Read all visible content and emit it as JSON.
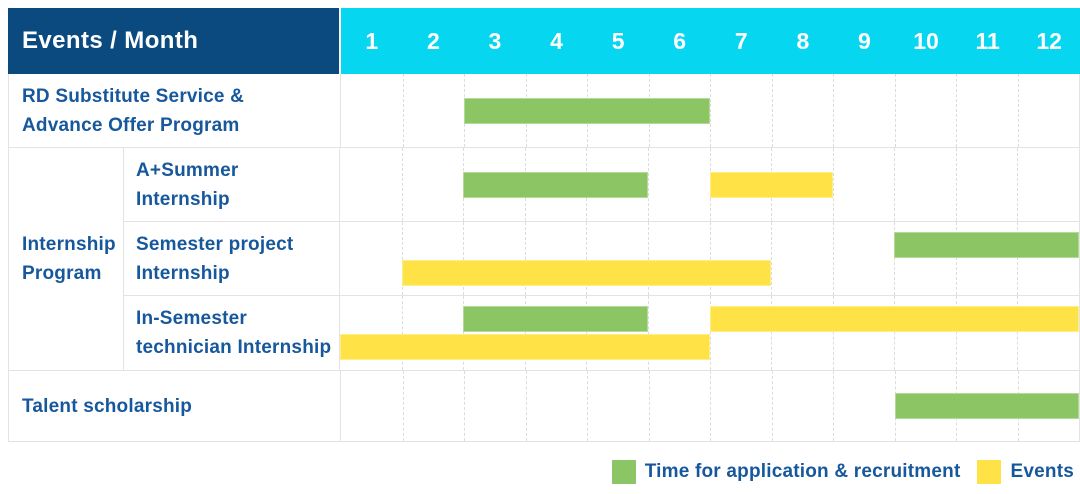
{
  "header": {
    "title": "Events / Month"
  },
  "colors": {
    "navy": "#0B4A7E",
    "cyan": "#06D6EF",
    "green": "#8CC664",
    "yellow": "#FFE346",
    "label_blue": "#17589C",
    "grid_line": "#E3E3E3"
  },
  "chart_data": {
    "type": "gantt",
    "corner_title": "Events / Month",
    "months": [
      "1",
      "2",
      "3",
      "4",
      "5",
      "6",
      "7",
      "8",
      "9",
      "10",
      "11",
      "12"
    ],
    "x_range": [
      1,
      12
    ],
    "grid": "dashed-vertical-columns",
    "group": {
      "label": "Internship\nProgram",
      "covers_rows": [
        1,
        2,
        3
      ]
    },
    "rows": [
      {
        "id": "rd-substitute",
        "label": "RD Substitute Service &\nAdvance Offer Program",
        "bars": [
          {
            "type": "application",
            "start_month": 3,
            "end_month": 6,
            "track": "single"
          }
        ]
      },
      {
        "id": "a-plus-summer",
        "label": "A+Summer\nInternship",
        "bars": [
          {
            "type": "application",
            "start_month": 3,
            "end_month": 5,
            "track": "single"
          },
          {
            "type": "event",
            "start_month": 7,
            "end_month": 8,
            "track": "single"
          }
        ]
      },
      {
        "id": "semester-project",
        "label": "Semester project\nInternship",
        "bars": [
          {
            "type": "application",
            "start_month": 10,
            "end_month": 12,
            "track": "top"
          },
          {
            "type": "event",
            "start_month": 2,
            "end_month": 7,
            "track": "bottom"
          }
        ]
      },
      {
        "id": "in-semester-technician",
        "label": "In-Semester\ntechnician Internship",
        "bars": [
          {
            "type": "application",
            "start_month": 3,
            "end_month": 5,
            "track": "top"
          },
          {
            "type": "event",
            "start_month": 7,
            "end_month": 12,
            "track": "top"
          },
          {
            "type": "event",
            "start_month": 1,
            "end_month": 6,
            "track": "bottom"
          }
        ]
      },
      {
        "id": "talent-scholarship",
        "label": "Talent scholarship",
        "bars": [
          {
            "type": "application",
            "start_month": 10,
            "end_month": 12,
            "track": "single"
          }
        ]
      }
    ],
    "legend": [
      {
        "type": "application",
        "label": "Time for application & recruitment"
      },
      {
        "type": "event",
        "label": "Events"
      }
    ],
    "legend_position": "bottom-right"
  }
}
